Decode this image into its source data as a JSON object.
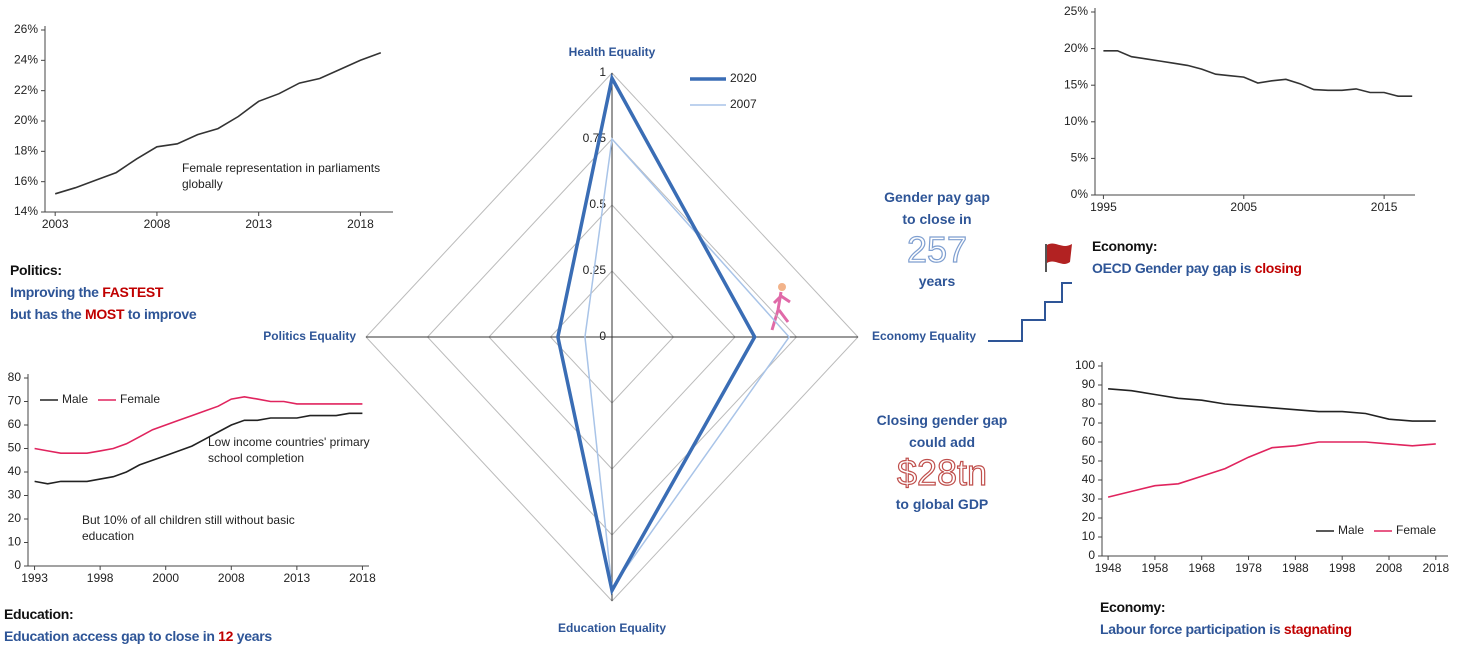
{
  "chart_data": [
    {
      "type": "line",
      "x": [
        2003,
        2004,
        2005,
        2006,
        2007,
        2008,
        2009,
        2010,
        2011,
        2012,
        2013,
        2014,
        2015,
        2016,
        2017,
        2018,
        2019
      ],
      "series": [
        {
          "name": "Female representation",
          "color": "#333333",
          "values": [
            15.2,
            15.6,
            16.1,
            16.6,
            17.5,
            18.3,
            18.5,
            19.1,
            19.5,
            20.3,
            21.3,
            21.8,
            22.5,
            22.8,
            23.4,
            24.0,
            24.5
          ]
        }
      ],
      "xlim": [
        2002.5,
        2019.6
      ],
      "xticks": [
        2003,
        2008,
        2013,
        2018
      ],
      "ylim": [
        14,
        26
      ],
      "yticks": [
        {
          "value": 14,
          "label": "14%"
        },
        {
          "value": 16,
          "label": "16%"
        },
        {
          "value": 18,
          "label": "18%"
        },
        {
          "value": 20,
          "label": "20%"
        },
        {
          "value": 22,
          "label": "22%"
        },
        {
          "value": 24,
          "label": "24%"
        },
        {
          "value": 26,
          "label": "26%"
        }
      ],
      "annotations": [
        "Female representation in parliaments globally"
      ]
    },
    {
      "type": "line",
      "categories": [
        "1993",
        null,
        null,
        null,
        null,
        "1998",
        null,
        null,
        null,
        null,
        "2000",
        null,
        null,
        null,
        null,
        "2008",
        null,
        null,
        null,
        null,
        "2013",
        null,
        null,
        null,
        null,
        "2018"
      ],
      "series": [
        {
          "name": "Male",
          "color": "#222222",
          "values": [
            36,
            35,
            36,
            36,
            36,
            37,
            38,
            40,
            43,
            45,
            47,
            49,
            51,
            54,
            57,
            60,
            62,
            62,
            63,
            63,
            63,
            64,
            64,
            64,
            65,
            65
          ]
        },
        {
          "name": "Female",
          "color": "#e0245e",
          "values": [
            50,
            49,
            48,
            48,
            48,
            49,
            50,
            52,
            55,
            58,
            60,
            62,
            64,
            66,
            68,
            71,
            72,
            71,
            70,
            70,
            69,
            69,
            69,
            69,
            69,
            69
          ]
        }
      ],
      "ylim": [
        0,
        80
      ],
      "yticks": [
        0,
        10,
        20,
        30,
        40,
        50,
        60,
        70,
        80
      ],
      "legend": "top-left",
      "annotations": [
        "Low income countries' primary school completion",
        "But 10% of all children still without basic education"
      ]
    },
    {
      "type": "radar",
      "categories": [
        "Health Equality",
        "Economy Equality",
        "Education Equality",
        "Politics Equality"
      ],
      "series": [
        {
          "name": "2020",
          "color": "#3a6db5",
          "values": [
            0.98,
            0.58,
            0.96,
            0.22
          ]
        },
        {
          "name": "2007",
          "color": "#a9c4e8",
          "values": [
            0.75,
            0.72,
            0.95,
            0.11
          ]
        }
      ],
      "rlim": [
        0,
        1
      ],
      "rticks": [
        0,
        0.25,
        0.5,
        0.75,
        1
      ],
      "legend": "top-right"
    },
    {
      "type": "line",
      "x": [
        1995,
        1996,
        1997,
        1998,
        1999,
        2000,
        2001,
        2002,
        2003,
        2004,
        2005,
        2006,
        2007,
        2008,
        2009,
        2010,
        2011,
        2012,
        2013,
        2014,
        2015,
        2016,
        2017
      ],
      "series": [
        {
          "name": "OECD gender pay gap",
          "color": "#333333",
          "values": [
            19.7,
            19.7,
            18.9,
            18.6,
            18.3,
            18.0,
            17.7,
            17.2,
            16.5,
            16.3,
            16.1,
            15.3,
            15.6,
            15.8,
            15.2,
            14.4,
            14.3,
            14.3,
            14.5,
            14.0,
            14.0,
            13.5,
            13.5
          ]
        }
      ],
      "xlim": [
        1994.4,
        2017.2
      ],
      "xticks": [
        1995,
        2005,
        2015
      ],
      "ylim": [
        0,
        25
      ],
      "yticks": [
        {
          "value": 0,
          "label": "0%"
        },
        {
          "value": 5,
          "label": "5%"
        },
        {
          "value": 10,
          "label": "10%"
        },
        {
          "value": 15,
          "label": "15%"
        },
        {
          "value": 20,
          "label": "20%"
        },
        {
          "value": 25,
          "label": "25%"
        }
      ]
    },
    {
      "type": "line",
      "x": [
        1948,
        1953,
        1958,
        1963,
        1968,
        1973,
        1978,
        1983,
        1988,
        1993,
        1998,
        2003,
        2008,
        2013,
        2018
      ],
      "series": [
        {
          "name": "Male",
          "color": "#222222",
          "values": [
            88,
            87,
            85,
            83,
            82,
            80,
            79,
            78,
            77,
            76,
            76,
            75,
            72,
            71,
            71
          ]
        },
        {
          "name": "Female",
          "color": "#e0245e",
          "values": [
            31,
            34,
            37,
            38,
            42,
            46,
            52,
            57,
            58,
            60,
            60,
            60,
            59,
            58,
            59
          ]
        }
      ],
      "xlim": [
        1946.7,
        2020.6
      ],
      "xticks": [
        1948,
        1958,
        1968,
        1978,
        1988,
        1998,
        2008,
        2018
      ],
      "ylim": [
        0,
        100
      ],
      "yticks": [
        0,
        10,
        20,
        30,
        40,
        50,
        60,
        70,
        80,
        90,
        100
      ],
      "legend": "bottom-right"
    }
  ],
  "captions": {
    "politics": {
      "heading": "Politics:",
      "line1": [
        "Improving the ",
        "FASTEST"
      ],
      "line2": [
        "but has the ",
        "MOST",
        " to improve"
      ]
    },
    "education": {
      "heading": "Education:",
      "line1": [
        "Education access gap to close in ",
        "12",
        " years"
      ]
    },
    "pay_gap": {
      "line1": "Gender pay gap",
      "line2": "to close in",
      "number": "257",
      "line3": "years"
    },
    "gdp": {
      "line1": "Closing gender gap",
      "line2": "could add",
      "number": "$28tn",
      "line3": "to global GDP"
    },
    "economy_pay": {
      "heading": "Economy:",
      "line1": [
        "OECD Gender pay gap is ",
        "closing"
      ]
    },
    "economy_labour": {
      "heading": "Economy:",
      "line1": [
        "Labour force participation is ",
        "stagnating"
      ]
    }
  }
}
